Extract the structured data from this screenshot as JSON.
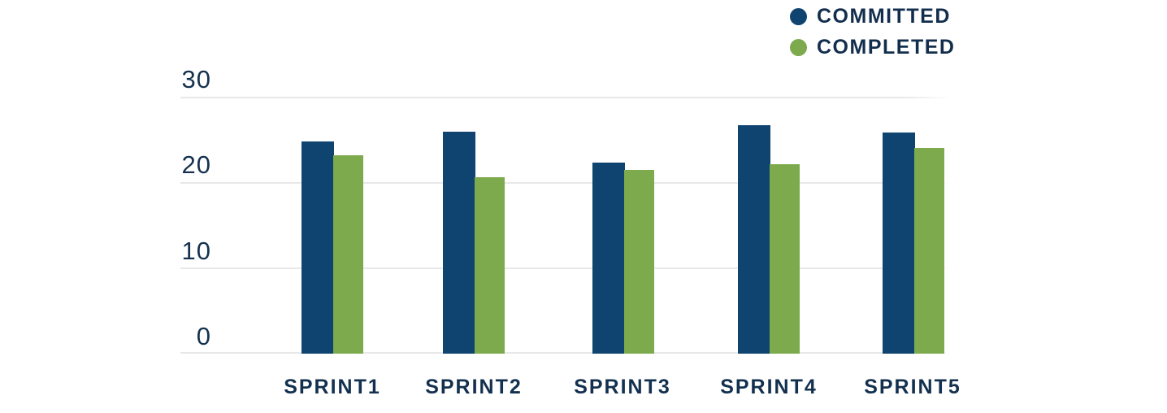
{
  "chart_data": {
    "type": "bar",
    "title": "",
    "xlabel": "",
    "ylabel": "",
    "categories": [
      "SPRINT1",
      "SPRINT2",
      "SPRINT3",
      "SPRINT4",
      "SPRINT5"
    ],
    "series": [
      {
        "name": "COMMITTED",
        "color": "#0f4470",
        "values": [
          24.8,
          25.9,
          22.3,
          26.7,
          25.8
        ]
      },
      {
        "name": "COMPLETED",
        "color": "#7caa4d",
        "values": [
          23.2,
          20.6,
          21.5,
          22.1,
          24.0
        ]
      }
    ],
    "ylim": [
      0,
      30
    ],
    "yticks": [
      30,
      20,
      10,
      0
    ],
    "grid": true,
    "legend_position": "top-right",
    "background": "#ffffff",
    "gridline_color": "#e8e8e8",
    "text_color": "#132e4d"
  }
}
